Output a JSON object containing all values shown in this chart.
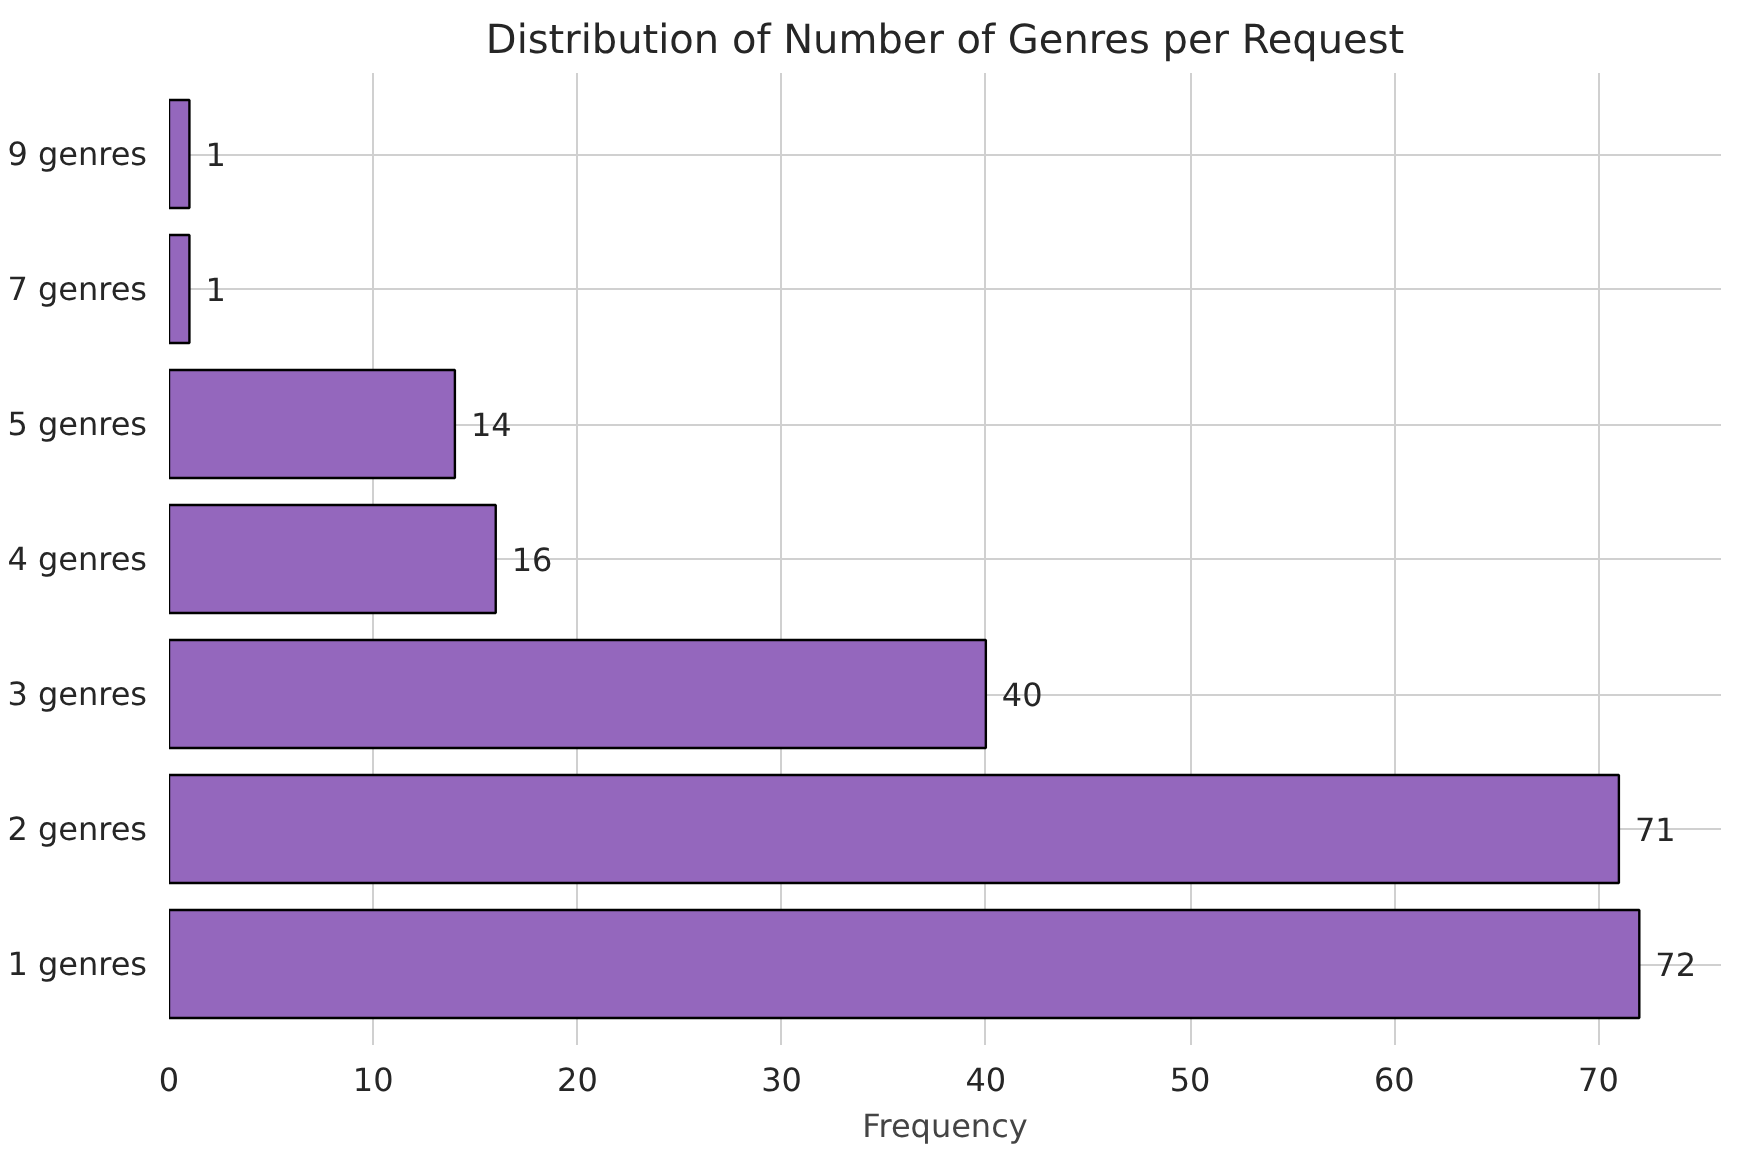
{
  "chart_data": {
    "type": "bar",
    "orientation": "horizontal",
    "title": "Distribution of Number of Genres per Request",
    "xlabel": "Frequency",
    "categories": [
      "9 genres",
      "7 genres",
      "5 genres",
      "4 genres",
      "3 genres",
      "2 genres",
      "1 genres"
    ],
    "values": [
      1,
      1,
      14,
      16,
      40,
      71,
      72
    ],
    "color": "#9467bd",
    "data_labels": true,
    "xlim": [
      0,
      76
    ],
    "xticks": [
      0,
      10,
      20,
      30,
      40,
      50,
      60,
      70
    ],
    "grid": true
  }
}
